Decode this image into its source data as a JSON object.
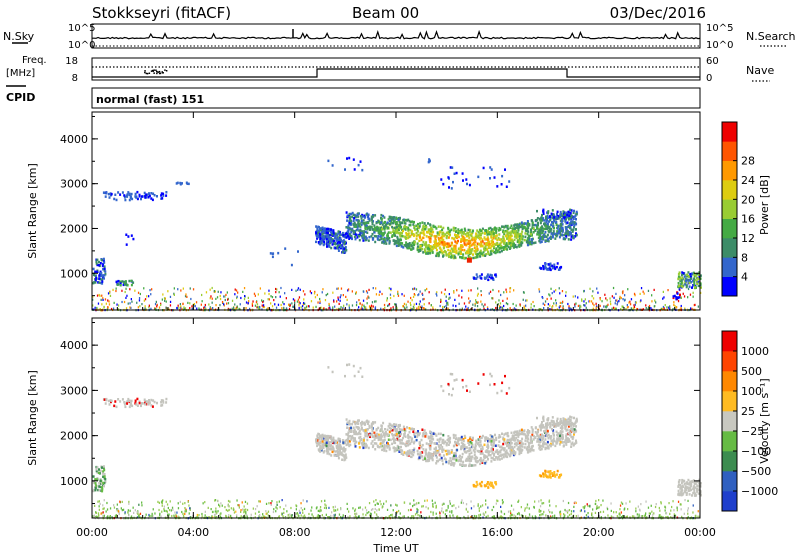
{
  "header": {
    "station": "Stokkseyri (fitACF)",
    "beam": "Beam 00",
    "date": "03/Dec/2016"
  },
  "top_panels": {
    "nsky_label": "N.Sky",
    "nsky_ticks": [
      "10^5",
      "10^0"
    ],
    "nsearch_label": "N.Search",
    "nsearch_ticks": [
      "10^5",
      "10^0"
    ],
    "freq_label": "Freq.",
    "freq_unit": "[MHz]",
    "freq_ticks": [
      "18",
      "8"
    ],
    "nave_label": "Nave",
    "nave_ticks": [
      "60",
      "0"
    ],
    "cpid_label": "CPID",
    "cpid_value": "normal (fast) 151"
  },
  "colors": {
    "power": [
      "#0000ff",
      "#3366cc",
      "#3c8c68",
      "#44aa44",
      "#99cc33",
      "#ddcc11",
      "#ff9900",
      "#ff5500",
      "#ee0000"
    ],
    "velocity": [
      "#1f3fcc",
      "#3060c0",
      "#3c8c50",
      "#66bb44",
      "#c8c8c0",
      "#ffbb22",
      "#ff8800",
      "#ff4400",
      "#ee0000"
    ],
    "grey": "#c4c4bd"
  },
  "chart_data": [
    {
      "type": "heatmap",
      "name": "Power panel",
      "ylabel": "Slant Range [km]",
      "xlabel": "Time UT",
      "x_tick_labels": [
        "00:00",
        "04:00",
        "08:00",
        "12:00",
        "16:00",
        "20:00",
        "00:00"
      ],
      "y_tick_labels": [
        "1000",
        "2000",
        "3000",
        "4000"
      ],
      "xlim_hours": [
        0,
        24
      ],
      "ylim_km": [
        180,
        4600
      ],
      "colorbar_label": "Power [dB]",
      "colorbar_ticks": [
        "4",
        "8",
        "12",
        "16",
        "20",
        "24",
        "28"
      ],
      "scatter_regions": [
        {
          "t": [
            8.7,
            19.3
          ],
          "r": [
            1300,
            2450
          ],
          "note": "main E/F band arc"
        },
        {
          "t": [
            0.5,
            2.8
          ],
          "r": [
            2650,
            2850
          ]
        },
        {
          "t": [
            0.0,
            0.6
          ],
          "r": [
            800,
            1350
          ]
        },
        {
          "t": [
            1.0,
            1.6
          ],
          "r": [
            750,
            850
          ]
        },
        {
          "t": [
            23.2,
            24.0
          ],
          "r": [
            700,
            1000
          ]
        },
        {
          "t": [
            17.5,
            18.5
          ],
          "r": [
            1100,
            1200
          ]
        },
        {
          "t": [
            13.5,
            16.5
          ],
          "r": [
            2950,
            3450
          ]
        }
      ]
    },
    {
      "type": "heatmap",
      "name": "Velocity panel",
      "ylabel": "Slant Range [km]",
      "xlabel": "Time UT",
      "x_tick_labels": [
        "00:00",
        "04:00",
        "08:00",
        "12:00",
        "16:00",
        "20:00",
        "00:00"
      ],
      "y_tick_labels": [
        "1000",
        "2000",
        "3000",
        "4000"
      ],
      "xlim_hours": [
        0,
        24
      ],
      "ylim_km": [
        180,
        4600
      ],
      "colorbar_label": "Velocity [m s⁻¹]",
      "colorbar_ticks": [
        "1000",
        "500",
        "100",
        "25",
        "−25",
        "−100",
        "−500",
        "−1000"
      ]
    }
  ]
}
